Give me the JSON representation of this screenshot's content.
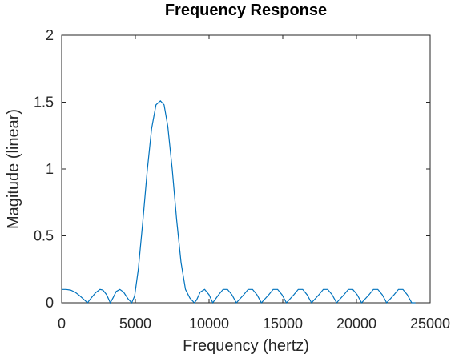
{
  "chart_data": {
    "type": "line",
    "title": "Frequency Response",
    "xlabel": "Frequency (hertz)",
    "ylabel": "Magitude (linear)",
    "xlim": [
      0,
      25000
    ],
    "ylim": [
      0,
      2
    ],
    "xticks": [
      0,
      5000,
      10000,
      15000,
      20000,
      25000
    ],
    "xtick_labels": [
      "0",
      "5000",
      "10000",
      "15000",
      "20000",
      "25000"
    ],
    "yticks": [
      0,
      0.5,
      1,
      1.5,
      2
    ],
    "ytick_labels": [
      "0",
      "0.5",
      "1",
      "1.5",
      "2"
    ],
    "grid": false,
    "line_color": "#0072BD",
    "series": [
      {
        "x": [
          0,
          300,
          600,
          900,
          1200,
          1500,
          1750,
          2000,
          2300,
          2600,
          2800,
          3050,
          3300,
          3500,
          3700,
          3950,
          4200,
          4500,
          4750,
          4950,
          5200,
          5500,
          5800,
          6100,
          6400,
          6700,
          6950,
          7200,
          7500,
          7800,
          8100,
          8400,
          8700,
          9000,
          9150,
          9400,
          9700,
          10000,
          10250,
          10650,
          10950,
          11250,
          11550,
          11850,
          12350,
          12650,
          12950,
          13250,
          13550,
          14050,
          14350,
          14650,
          14950,
          15250,
          15750,
          16050,
          16350,
          16650,
          16950,
          17450,
          17750,
          18050,
          18350,
          18650,
          19150,
          19450,
          19750,
          20050,
          20350,
          20850,
          21150,
          21450,
          21750,
          22050,
          22550,
          22850,
          23150,
          23450,
          23750,
          24000
        ],
        "y": [
          0.1,
          0.1,
          0.095,
          0.08,
          0.055,
          0.025,
          0.0,
          0.035,
          0.075,
          0.1,
          0.095,
          0.06,
          0.0,
          0.04,
          0.085,
          0.1,
          0.08,
          0.03,
          0.0,
          0.05,
          0.25,
          0.6,
          0.98,
          1.3,
          1.48,
          1.51,
          1.48,
          1.32,
          1.0,
          0.62,
          0.3,
          0.1,
          0.035,
          0.0,
          0.02,
          0.08,
          0.1,
          0.06,
          0.0,
          0.06,
          0.1,
          0.1,
          0.06,
          0.0,
          0.06,
          0.1,
          0.1,
          0.06,
          0.0,
          0.06,
          0.1,
          0.1,
          0.06,
          0.0,
          0.06,
          0.1,
          0.1,
          0.06,
          0.0,
          0.06,
          0.1,
          0.1,
          0.06,
          0.0,
          0.06,
          0.1,
          0.1,
          0.06,
          0.0,
          0.06,
          0.1,
          0.1,
          0.06,
          0.0,
          0.06,
          0.1,
          0.1,
          0.06,
          0.0,
          0.0
        ]
      }
    ]
  }
}
